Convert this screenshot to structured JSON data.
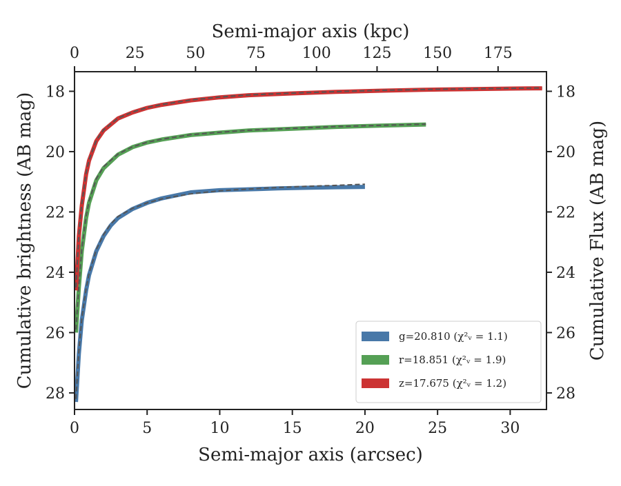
{
  "chart_data": {
    "type": "line",
    "xlabel": "Semi-major axis (arcsec)",
    "xlabel_top": "Semi-major axis (kpc)",
    "ylabel": "Cumulative brightness (AB mag)",
    "ylabel_right": "Cumulative Flux (AB mag)",
    "xlim": [
      0,
      32.5
    ],
    "xlim_top": [
      0,
      195
    ],
    "ylim": [
      28.55,
      17.35
    ],
    "y_inverted": true,
    "xticks": [
      0,
      5,
      10,
      15,
      20,
      25,
      30
    ],
    "xticks_top": [
      0,
      25,
      50,
      75,
      100,
      125,
      150,
      175
    ],
    "yticks": [
      18,
      20,
      22,
      24,
      26,
      28
    ],
    "grid": false,
    "legend_position": "lower-right",
    "model_line_style": "dashed",
    "model_line_color": "#555555",
    "series": [
      {
        "name": "g=20.810 (χ²ᵥ = 1.1)",
        "band": "g",
        "color": "#4878a8",
        "x": [
          0.1,
          0.3,
          0.5,
          0.8,
          1.0,
          1.5,
          2.0,
          2.5,
          3.0,
          4.0,
          5.0,
          6.0,
          7.0,
          8.0,
          10.0,
          12.0,
          14.0,
          16.0,
          18.0,
          20.0
        ],
        "y": [
          28.3,
          26.7,
          25.6,
          24.6,
          24.1,
          23.3,
          22.8,
          22.45,
          22.2,
          21.9,
          21.7,
          21.55,
          21.45,
          21.35,
          21.28,
          21.25,
          21.22,
          21.2,
          21.18,
          21.17
        ]
      },
      {
        "name": "r=18.851 (χ²ᵥ = 1.9)",
        "band": "r",
        "color": "#55a055",
        "x": [
          0.1,
          0.3,
          0.5,
          0.8,
          1.0,
          1.5,
          2.0,
          3.0,
          4.0,
          5.0,
          6.0,
          8.0,
          10.0,
          12.0,
          15.0,
          18.0,
          21.0,
          24.2
        ],
        "y": [
          26.0,
          24.5,
          23.3,
          22.2,
          21.7,
          20.95,
          20.55,
          20.1,
          19.85,
          19.7,
          19.6,
          19.45,
          19.37,
          19.3,
          19.24,
          19.18,
          19.14,
          19.1
        ]
      },
      {
        "name": "z=17.675 (χ²ᵥ = 1.2)",
        "band": "z",
        "color": "#cc3333",
        "x": [
          0.1,
          0.3,
          0.5,
          0.8,
          1.0,
          1.5,
          2.0,
          3.0,
          4.0,
          5.0,
          6.0,
          8.0,
          10.0,
          12.0,
          15.0,
          18.0,
          21.0,
          24.0,
          27.0,
          30.0,
          32.2
        ],
        "y": [
          24.6,
          22.8,
          21.8,
          20.75,
          20.3,
          19.65,
          19.3,
          18.9,
          18.7,
          18.55,
          18.45,
          18.3,
          18.2,
          18.13,
          18.07,
          18.02,
          17.98,
          17.95,
          17.93,
          17.91,
          17.9
        ]
      }
    ],
    "models": [
      {
        "band": "g",
        "x": [
          0.1,
          0.3,
          0.5,
          0.8,
          1.0,
          1.5,
          2.0,
          2.5,
          3.0,
          4.0,
          5.0,
          6.0,
          7.0,
          8.0,
          10.0,
          12.0,
          14.0,
          16.0,
          18.0,
          20.0
        ],
        "y": [
          28.2,
          26.6,
          25.55,
          24.55,
          24.05,
          23.25,
          22.75,
          22.4,
          22.15,
          21.88,
          21.7,
          21.57,
          21.48,
          21.4,
          21.3,
          21.24,
          21.19,
          21.15,
          21.12,
          21.08
        ]
      },
      {
        "band": "r",
        "x": [
          0.1,
          0.3,
          0.5,
          0.8,
          1.0,
          1.5,
          2.0,
          3.0,
          4.0,
          5.0,
          6.0,
          8.0,
          10.0,
          12.0,
          15.0,
          18.0,
          21.0,
          24.2
        ],
        "y": [
          25.9,
          24.45,
          23.25,
          22.15,
          21.65,
          20.9,
          20.5,
          20.08,
          19.84,
          19.69,
          19.59,
          19.44,
          19.36,
          19.29,
          19.23,
          19.17,
          19.13,
          19.09
        ]
      },
      {
        "band": "z",
        "x": [
          0.1,
          0.3,
          0.5,
          0.8,
          1.0,
          1.5,
          2.0,
          3.0,
          4.0,
          5.0,
          6.0,
          8.0,
          10.0,
          12.0,
          15.0,
          18.0,
          21.0,
          24.0,
          27.0,
          30.0,
          32.2
        ],
        "y": [
          24.5,
          22.75,
          21.75,
          20.72,
          20.28,
          19.63,
          19.28,
          18.89,
          18.69,
          18.54,
          18.44,
          18.29,
          18.19,
          18.12,
          18.06,
          18.01,
          17.97,
          17.94,
          17.92,
          17.9,
          17.89
        ]
      }
    ]
  }
}
